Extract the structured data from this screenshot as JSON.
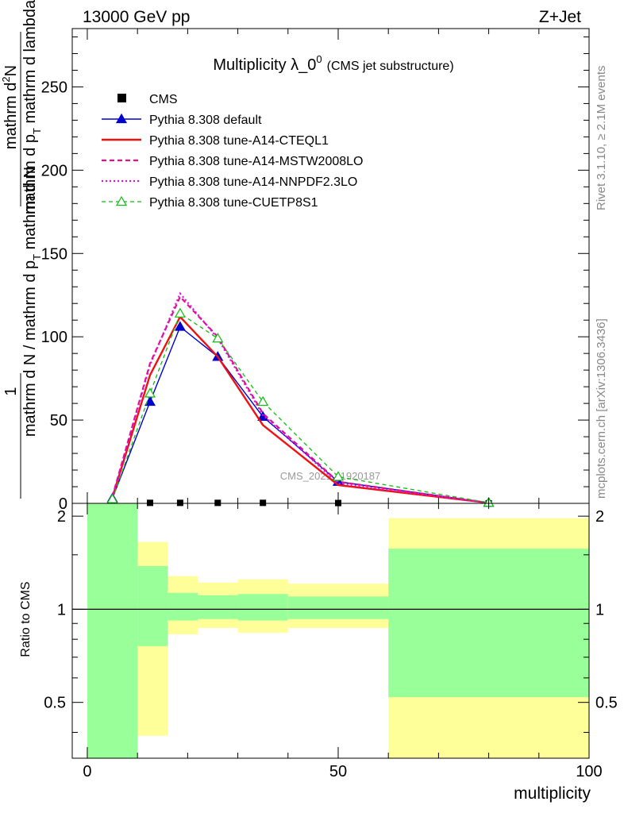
{
  "header": {
    "left": "13000 GeV pp",
    "right": "Z+Jet"
  },
  "side_labels": {
    "rivet": "Rivet 3.1.10, ≥ 2.1M events",
    "mcplots": "mcplots.cern.ch [arXiv:1306.3436]"
  },
  "watermark": "CMS_2021_I1920187",
  "chart_data": [
    {
      "type": "line",
      "title": "Multiplicity λ_0",
      "title_sup": "0",
      "subtitle": "(CMS jet substructure)",
      "ylabel_num": "mathrm dN",
      "ylabel_num_1": "mathrm d",
      "ylabel_num_sup": "2",
      "ylabel_num_2": "N",
      "ylabel_den": "mathrm d p",
      "ylabel_den_1": "mathrm d p",
      "ylabel_den_sub": "T",
      "ylabel_den_2": " mathrm d lambda",
      "ylabel_left_1": "1",
      "ylabel_left_2": "mathrm d N / mathrm d p",
      "ylabel_left_sub": "T",
      "ylabel_left_3": " mathrm d N",
      "xlim": [
        -3,
        100
      ],
      "ylim": [
        0,
        285
      ],
      "yticks": [
        0,
        50,
        100,
        150,
        200,
        250
      ],
      "yticklabels": [
        "0",
        "50",
        "100",
        "150",
        "200",
        "250"
      ],
      "legend_position": "top-left",
      "series": [
        {
          "name": "CMS",
          "style": "data",
          "color": "#000000",
          "x": [
            5,
            12.5,
            18.5,
            26,
            35,
            50,
            80
          ],
          "y": [
            0.3,
            0.3,
            0.3,
            0.3,
            0.3,
            0.2,
            0.05
          ]
        },
        {
          "name": "Pythia 8.308 default",
          "style": "solid",
          "marker": "triangle-filled",
          "color": "#0000cc",
          "x": [
            5,
            12.5,
            18.5,
            26,
            35,
            50,
            80
          ],
          "y": [
            3,
            61,
            106,
            88,
            52,
            13,
            0.4
          ]
        },
        {
          "name": "Pythia 8.308 tune-A14-CTEQL1",
          "style": "solid-thick",
          "color": "#ee1111",
          "x": [
            5,
            12.5,
            18.5,
            26,
            35,
            50,
            80
          ],
          "y": [
            3.5,
            77,
            112,
            88,
            47,
            11,
            0.3
          ]
        },
        {
          "name": "Pythia 8.308 tune-A14-MSTW2008LO",
          "style": "dashed",
          "color": "#dd1188",
          "x": [
            5,
            12.5,
            18.5,
            26,
            35,
            50,
            80
          ],
          "y": [
            4,
            84,
            124,
            100,
            54,
            13,
            0.3
          ]
        },
        {
          "name": "Pythia 8.308 tune-A14-NNPDF2.3LO",
          "style": "dotted",
          "color": "#dd11dd",
          "x": [
            5,
            12.5,
            18.5,
            26,
            35,
            50,
            80
          ],
          "y": [
            4,
            83,
            126,
            99,
            53,
            12,
            0.3
          ]
        },
        {
          "name": "Pythia 8.308 tune-CUETP8S1",
          "style": "dashed-thin",
          "marker": "triangle-open",
          "color": "#11bb11",
          "x": [
            5,
            12.5,
            18.5,
            26,
            35,
            50,
            80
          ],
          "y": [
            2.5,
            66,
            114,
            99,
            61,
            16,
            0.4
          ]
        }
      ]
    },
    {
      "type": "area",
      "ylabel": "Ratio to CMS",
      "xlabel": "multiplicity",
      "xlim": [
        -3,
        100
      ],
      "ylim": [
        0.33,
        2.2
      ],
      "log_y": true,
      "yticks": [
        0.5,
        1,
        2
      ],
      "yticklabels": [
        "0.5",
        "1",
        "2"
      ],
      "xticks": [
        0,
        50,
        100
      ],
      "xticklabels": [
        "0",
        "50",
        "100"
      ],
      "reference_line": 1,
      "bins": [
        {
          "x0": 0,
          "x1": 10,
          "stat_lo": 0.3,
          "stat_hi": 2.5,
          "tot_lo": 0.3,
          "tot_hi": 2.5
        },
        {
          "x0": 10,
          "x1": 16,
          "stat_lo": 0.76,
          "stat_hi": 1.38,
          "tot_lo": 0.39,
          "tot_hi": 1.65
        },
        {
          "x0": 16,
          "x1": 22,
          "stat_lo": 0.92,
          "stat_hi": 1.13,
          "tot_lo": 0.83,
          "tot_hi": 1.28
        },
        {
          "x0": 22,
          "x1": 30,
          "stat_lo": 0.93,
          "stat_hi": 1.11,
          "tot_lo": 0.87,
          "tot_hi": 1.22
        },
        {
          "x0": 30,
          "x1": 40,
          "stat_lo": 0.92,
          "stat_hi": 1.12,
          "tot_lo": 0.84,
          "tot_hi": 1.25
        },
        {
          "x0": 40,
          "x1": 60,
          "stat_lo": 0.93,
          "stat_hi": 1.1,
          "tot_lo": 0.87,
          "tot_hi": 1.21
        },
        {
          "x0": 60,
          "x1": 100,
          "stat_lo": 0.52,
          "stat_hi": 1.57,
          "tot_lo": 0.3,
          "tot_hi": 1.97
        }
      ],
      "colors": {
        "stat": "#99ff99",
        "total": "#ffff99"
      }
    }
  ]
}
